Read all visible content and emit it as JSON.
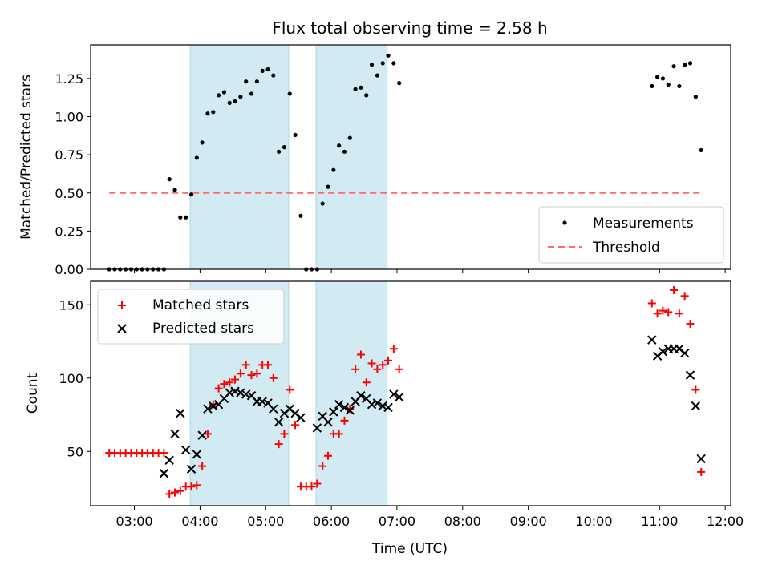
{
  "title": "Flux total observing time = 2.58 h",
  "xlabel": "Time (UTC)",
  "colors": {
    "shade": "#add8e6",
    "measurements": "#000000",
    "threshold": "#ff6b6b",
    "matched": "#ff0000",
    "predicted": "#000000"
  },
  "chart_data": [
    {
      "type": "scatter",
      "ylabel": "Matched/Predicted stars",
      "xlim": [
        "02:20",
        "12:05"
      ],
      "ylim": [
        0,
        1.47
      ],
      "x_ticks": [
        "03:00",
        "04:00",
        "05:00",
        "06:00",
        "07:00",
        "08:00",
        "09:00",
        "10:00",
        "11:00",
        "12:00"
      ],
      "y_ticks": [
        "0.00",
        "0.25",
        "0.50",
        "0.75",
        "1.00",
        "1.25"
      ],
      "shaded_intervals": [
        [
          "03:51",
          "05:21"
        ],
        [
          "05:46",
          "06:51"
        ]
      ],
      "legend_position": "lower right",
      "series": [
        {
          "name": "Measurements",
          "marker": "dot",
          "points": [
            [
              "02:37",
              0.0
            ],
            [
              "02:42",
              0.0
            ],
            [
              "02:47",
              0.0
            ],
            [
              "02:52",
              0.0
            ],
            [
              "02:57",
              0.0
            ],
            [
              "03:02",
              0.0
            ],
            [
              "03:07",
              0.0
            ],
            [
              "03:12",
              0.0
            ],
            [
              "03:17",
              0.0
            ],
            [
              "03:22",
              0.0
            ],
            [
              "03:27",
              0.0
            ],
            [
              "03:32",
              0.59
            ],
            [
              "03:37",
              0.52
            ],
            [
              "03:42",
              0.34
            ],
            [
              "03:47",
              0.34
            ],
            [
              "03:52",
              0.49
            ],
            [
              "03:57",
              0.73
            ],
            [
              "04:02",
              0.83
            ],
            [
              "04:07",
              1.02
            ],
            [
              "04:12",
              1.03
            ],
            [
              "04:17",
              1.14
            ],
            [
              "04:22",
              1.16
            ],
            [
              "04:27",
              1.09
            ],
            [
              "04:32",
              1.1
            ],
            [
              "04:37",
              1.13
            ],
            [
              "04:42",
              1.23
            ],
            [
              "04:47",
              1.15
            ],
            [
              "04:52",
              1.23
            ],
            [
              "04:57",
              1.3
            ],
            [
              "05:02",
              1.31
            ],
            [
              "05:07",
              1.27
            ],
            [
              "05:12",
              0.77
            ],
            [
              "05:17",
              0.8
            ],
            [
              "05:22",
              1.15
            ],
            [
              "05:27",
              0.88
            ],
            [
              "05:32",
              0.35
            ],
            [
              "05:37",
              0.0
            ],
            [
              "05:42",
              0.0
            ],
            [
              "05:47",
              0.0
            ],
            [
              "05:52",
              0.43
            ],
            [
              "05:57",
              0.54
            ],
            [
              "06:02",
              0.65
            ],
            [
              "06:07",
              0.81
            ],
            [
              "06:12",
              0.77
            ],
            [
              "06:17",
              0.86
            ],
            [
              "06:22",
              1.18
            ],
            [
              "06:27",
              1.19
            ],
            [
              "06:32",
              1.14
            ],
            [
              "06:37",
              1.34
            ],
            [
              "06:42",
              1.27
            ],
            [
              "06:47",
              1.35
            ],
            [
              "06:52",
              1.4
            ],
            [
              "06:57",
              1.35
            ],
            [
              "07:02",
              1.22
            ],
            [
              "10:53",
              1.2
            ],
            [
              "10:58",
              1.26
            ],
            [
              "11:03",
              1.25
            ],
            [
              "11:08",
              1.21
            ],
            [
              "11:13",
              1.33
            ],
            [
              "11:18",
              1.2
            ],
            [
              "11:23",
              1.34
            ],
            [
              "11:28",
              1.35
            ],
            [
              "11:33",
              1.13
            ],
            [
              "11:38",
              0.78
            ]
          ]
        },
        {
          "name": "Threshold",
          "marker": "dashed-line",
          "points": [
            [
              "02:37",
              0.5
            ],
            [
              "11:38",
              0.5
            ]
          ]
        }
      ]
    },
    {
      "type": "scatter",
      "ylabel": "Count",
      "xlim": [
        "02:20",
        "12:05"
      ],
      "ylim": [
        13,
        166
      ],
      "x_ticks": [
        "03:00",
        "04:00",
        "05:00",
        "06:00",
        "07:00",
        "08:00",
        "09:00",
        "10:00",
        "11:00",
        "12:00"
      ],
      "y_ticks": [
        "50",
        "100",
        "150"
      ],
      "shaded_intervals": [
        [
          "03:51",
          "05:21"
        ],
        [
          "05:46",
          "06:51"
        ]
      ],
      "legend_position": "upper left",
      "series": [
        {
          "name": "Matched stars",
          "marker": "plus",
          "points": [
            [
              "02:37",
              49
            ],
            [
              "02:42",
              49
            ],
            [
              "02:47",
              49
            ],
            [
              "02:52",
              49
            ],
            [
              "02:57",
              49
            ],
            [
              "03:02",
              49
            ],
            [
              "03:07",
              49
            ],
            [
              "03:12",
              49
            ],
            [
              "03:17",
              49
            ],
            [
              "03:22",
              49
            ],
            [
              "03:27",
              49
            ],
            [
              "03:32",
              21
            ],
            [
              "03:37",
              22
            ],
            [
              "03:42",
              23
            ],
            [
              "03:47",
              26
            ],
            [
              "03:52",
              26
            ],
            [
              "03:57",
              27
            ],
            [
              "04:02",
              40
            ],
            [
              "04:07",
              62
            ],
            [
              "04:12",
              82
            ],
            [
              "04:17",
              93
            ],
            [
              "04:22",
              96
            ],
            [
              "04:27",
              97
            ],
            [
              "04:32",
              99
            ],
            [
              "04:37",
              103
            ],
            [
              "04:42",
              109
            ],
            [
              "04:47",
              102
            ],
            [
              "04:52",
              103
            ],
            [
              "04:57",
              109
            ],
            [
              "05:02",
              109
            ],
            [
              "05:07",
              100
            ],
            [
              "05:12",
              55
            ],
            [
              "05:17",
              62
            ],
            [
              "05:22",
              92
            ],
            [
              "05:27",
              68
            ],
            [
              "05:32",
              26
            ],
            [
              "05:37",
              26
            ],
            [
              "05:42",
              26
            ],
            [
              "05:47",
              28
            ],
            [
              "05:52",
              40
            ],
            [
              "05:57",
              47
            ],
            [
              "06:02",
              62
            ],
            [
              "06:07",
              62
            ],
            [
              "06:12",
              71
            ],
            [
              "06:17",
              79
            ],
            [
              "06:22",
              106
            ],
            [
              "06:27",
              116
            ],
            [
              "06:32",
              97
            ],
            [
              "06:37",
              110
            ],
            [
              "06:42",
              106
            ],
            [
              "06:47",
              109
            ],
            [
              "06:52",
              112
            ],
            [
              "06:57",
              120
            ],
            [
              "07:02",
              106
            ],
            [
              "10:53",
              151
            ],
            [
              "10:58",
              144
            ],
            [
              "11:03",
              146
            ],
            [
              "11:08",
              145
            ],
            [
              "11:13",
              160
            ],
            [
              "11:18",
              144
            ],
            [
              "11:23",
              156
            ],
            [
              "11:28",
              137
            ],
            [
              "11:33",
              92
            ],
            [
              "11:38",
              36
            ]
          ]
        },
        {
          "name": "Predicted stars",
          "marker": "x",
          "points": [
            [
              "03:27",
              35
            ],
            [
              "03:32",
              44
            ],
            [
              "03:37",
              62
            ],
            [
              "03:42",
              76
            ],
            [
              "03:47",
              51
            ],
            [
              "03:52",
              38
            ],
            [
              "03:57",
              48
            ],
            [
              "04:02",
              61
            ],
            [
              "04:07",
              79
            ],
            [
              "04:12",
              81
            ],
            [
              "04:17",
              82
            ],
            [
              "04:22",
              86
            ],
            [
              "04:27",
              90
            ],
            [
              "04:32",
              91
            ],
            [
              "04:37",
              90
            ],
            [
              "04:42",
              89
            ],
            [
              "04:47",
              88
            ],
            [
              "04:52",
              84
            ],
            [
              "04:57",
              84
            ],
            [
              "05:02",
              83
            ],
            [
              "05:07",
              79
            ],
            [
              "05:12",
              70
            ],
            [
              "05:17",
              76
            ],
            [
              "05:22",
              79
            ],
            [
              "05:27",
              76
            ],
            [
              "05:32",
              73
            ],
            [
              "05:47",
              66
            ],
            [
              "05:52",
              74
            ],
            [
              "05:57",
              70
            ],
            [
              "06:02",
              77
            ],
            [
              "06:07",
              82
            ],
            [
              "06:12",
              80
            ],
            [
              "06:17",
              78
            ],
            [
              "06:22",
              84
            ],
            [
              "06:27",
              88
            ],
            [
              "06:32",
              86
            ],
            [
              "06:37",
              82
            ],
            [
              "06:42",
              83
            ],
            [
              "06:47",
              81
            ],
            [
              "06:52",
              80
            ],
            [
              "06:57",
              89
            ],
            [
              "07:02",
              87
            ],
            [
              "10:53",
              126
            ],
            [
              "10:58",
              115
            ],
            [
              "11:03",
              118
            ],
            [
              "11:08",
              120
            ],
            [
              "11:13",
              120
            ],
            [
              "11:18",
              120
            ],
            [
              "11:23",
              117
            ],
            [
              "11:28",
              102
            ],
            [
              "11:33",
              81
            ],
            [
              "11:38",
              45
            ]
          ]
        }
      ]
    }
  ]
}
